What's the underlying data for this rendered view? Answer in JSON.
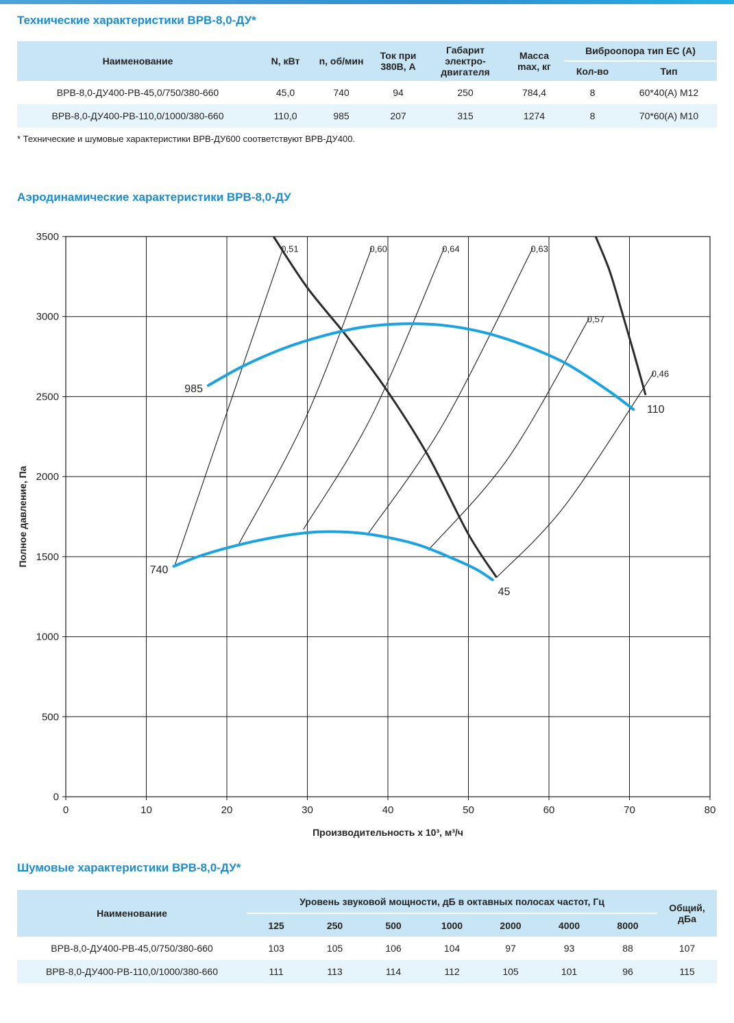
{
  "tech": {
    "title": "Технические характеристики ВРВ-8,0-ДУ*",
    "headers": {
      "name": "Наименование",
      "power": "N, кВт",
      "rpm": "n, об/мин",
      "current_l1": "Ток при",
      "current_l2": "380В, А",
      "frame_l1": "Габарит",
      "frame_l2": "электро-",
      "frame_l3": "двигателя",
      "mass_l1": "Масса",
      "mass_l2": "max, кг",
      "vib_group": "Виброопора тип ЕС (А)",
      "vib_qty": "Кол-во",
      "vib_type": "Тип"
    },
    "rows": [
      {
        "name": "ВРВ-8,0-ДУ400-РВ-45,0/750/380-660",
        "power": "45,0",
        "rpm": "740",
        "current": "94",
        "frame": "250",
        "mass": "784,4",
        "qty": "8",
        "type": "60*40(А) М12"
      },
      {
        "name": "ВРВ-8,0-ДУ400-РВ-110,0/1000/380-660",
        "power": "110,0",
        "rpm": "985",
        "current": "207",
        "frame": "315",
        "mass": "1274",
        "qty": "8",
        "type": "70*60(А) М10"
      }
    ],
    "note": "* Технические и шумовые характеристики ВРВ-ДУ600 соответствуют ВРВ-ДУ400."
  },
  "aero": {
    "title": "Аэродинамические характеристики ВРВ-8,0-ДУ"
  },
  "chart_data": {
    "type": "line",
    "xlabel": "Производительность х 10³, м³/ч",
    "ylabel": "Полное давление, Па",
    "xlim": [
      0,
      80
    ],
    "ylim": [
      0,
      3500
    ],
    "x_ticks": [
      "0",
      "10",
      "20",
      "30",
      "40",
      "50",
      "60",
      "70",
      "80"
    ],
    "y_ticks": [
      "0",
      "500",
      "1000",
      "1500",
      "2000",
      "2500",
      "3000",
      "3500"
    ],
    "grid": true,
    "accent_color": "#1aa3e0",
    "curve_color": "#2a2a2a",
    "speed_curves": [
      {
        "label": "740",
        "x": [
          13.4,
          17,
          22,
          27,
          31.5,
          36,
          40,
          44,
          48,
          51,
          53
        ],
        "y": [
          1440,
          1510,
          1580,
          1630,
          1655,
          1650,
          1620,
          1570,
          1490,
          1420,
          1355
        ]
      },
      {
        "label": "985",
        "x": [
          17.7,
          22,
          27,
          32,
          37,
          42,
          47,
          52,
          57,
          62,
          67,
          70.5
        ],
        "y": [
          2570,
          2690,
          2800,
          2880,
          2935,
          2955,
          2945,
          2900,
          2820,
          2710,
          2550,
          2420
        ]
      }
    ],
    "power_curves": [
      {
        "label": "45",
        "x": [
          25.8,
          30,
          35,
          40,
          45,
          50,
          53.5
        ],
        "y": [
          3500,
          3180,
          2870,
          2530,
          2130,
          1640,
          1370
        ]
      },
      {
        "label": "110",
        "x": [
          65.8,
          67.5,
          69,
          70.5,
          72
        ],
        "y": [
          3500,
          3290,
          3040,
          2780,
          2510
        ]
      }
    ],
    "efficiency_lines": [
      {
        "label": "0,51",
        "x": [
          13.5,
          20,
          27
        ],
        "y": [
          1440,
          2400,
          3430
        ]
      },
      {
        "label": "0,60",
        "x": [
          21.5,
          30,
          38
        ],
        "y": [
          1580,
          2390,
          3430
        ]
      },
      {
        "label": "0,64",
        "x": [
          29.5,
          38,
          47
        ],
        "y": [
          1670,
          2380,
          3430
        ]
      },
      {
        "label": "0,63",
        "x": [
          37.5,
          47,
          58
        ],
        "y": [
          1640,
          2340,
          3430
        ]
      },
      {
        "label": "0,57",
        "x": [
          45,
          55,
          65
        ],
        "y": [
          1540,
          2120,
          2990
        ]
      },
      {
        "label": "0,46",
        "x": [
          53.5,
          62,
          73
        ],
        "y": [
          1370,
          1820,
          2650
        ]
      }
    ]
  },
  "noise": {
    "title": "Шумовые характеристики ВРВ-8,0-ДУ*",
    "headers": {
      "name": "Наименование",
      "band_group": "Уровень звуковой мощности, дБ в октавных полосах частот, Гц",
      "total_l1": "Общий,",
      "total_l2": "дБа",
      "bands": [
        "125",
        "250",
        "500",
        "1000",
        "2000",
        "4000",
        "8000"
      ]
    },
    "rows": [
      {
        "name": "ВРВ-8,0-ДУ400-РВ-45,0/750/380-660",
        "values": [
          "103",
          "105",
          "106",
          "104",
          "97",
          "93",
          "88"
        ],
        "total": "107"
      },
      {
        "name": "ВРВ-8,0-ДУ400-РВ-110,0/1000/380-660",
        "values": [
          "111",
          "113",
          "114",
          "112",
          "105",
          "101",
          "96"
        ],
        "total": "115"
      }
    ]
  }
}
